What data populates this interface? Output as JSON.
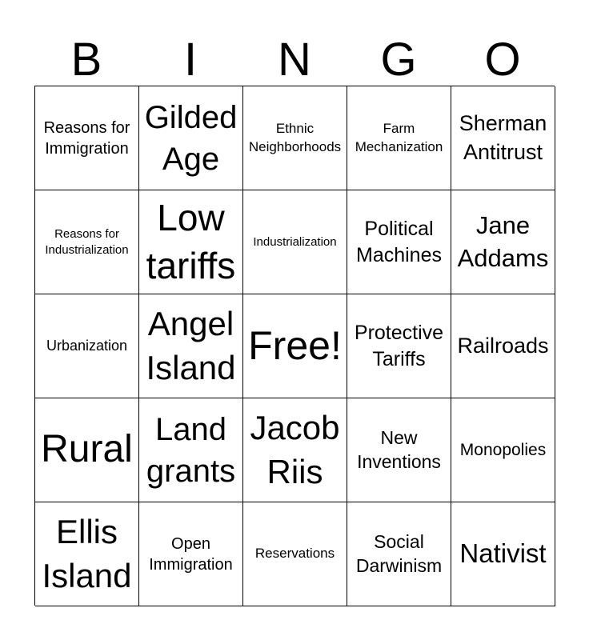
{
  "header": [
    "B",
    "I",
    "N",
    "G",
    "O"
  ],
  "cells": [
    "Reasons for Immigration",
    "Gilded Age",
    "Ethnic Neighborhoods",
    "Farm Mechanization",
    "Sherman Antitrust",
    "Reasons for Industrialization",
    "Low tariffs",
    "Industrialization",
    "Political Machines",
    "Jane Addams",
    "Urbanization",
    "Angel Island",
    "Free!",
    "Protective Tariffs",
    "Railroads",
    "Rural",
    "Land grants",
    "Jacob Riis",
    "New Inventions",
    "Monopolies",
    "Ellis Island",
    "Open Immigration",
    "Reservations",
    "Social Darwinism",
    "Nativist"
  ]
}
